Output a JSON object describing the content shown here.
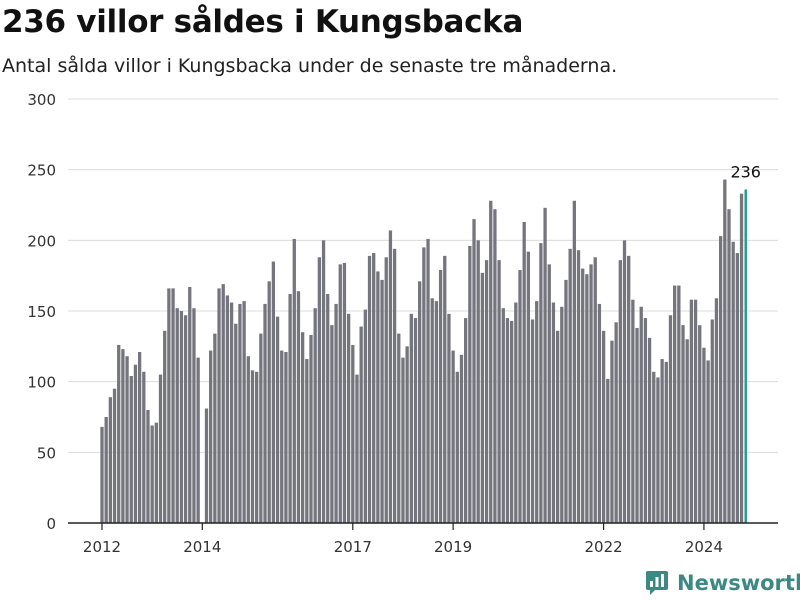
{
  "colors": {
    "bar": "#75757d",
    "highlight": "#1a9c8c",
    "grid": "#dcdcdc",
    "axis": "#222222",
    "brand": "#3a8a83"
  },
  "brand": {
    "name": "Newsworthy",
    "icon": "newsworthy-logo-icon"
  },
  "chart_data": {
    "type": "bar",
    "title": "236 villor såldes i Kungsbacka",
    "subtitle": "Antal sålda villor i Kungsbacka under de senaste tre månaderna.",
    "xlabel": "",
    "ylabel": "",
    "ylim": [
      0,
      300
    ],
    "yticks": [
      "0",
      "50",
      "100",
      "150",
      "200",
      "250",
      "300"
    ],
    "grid": true,
    "legend": "none",
    "first_period": "2012-01",
    "x_tick_labels": [
      {
        "label": "2012",
        "period": "2012-01"
      },
      {
        "label": "2014",
        "period": "2014-01"
      },
      {
        "label": "2017",
        "period": "2017-01"
      },
      {
        "label": "2019",
        "period": "2019-01"
      },
      {
        "label": "2022",
        "period": "2022-01"
      },
      {
        "label": "2024",
        "period": "2024-01"
      }
    ],
    "values": [
      68,
      75,
      89,
      95,
      126,
      123,
      118,
      104,
      112,
      121,
      107,
      80,
      69,
      71,
      105,
      136,
      166,
      166,
      152,
      150,
      147,
      167,
      152,
      117,
      0,
      81,
      122,
      134,
      166,
      169,
      161,
      156,
      141,
      155,
      157,
      118,
      108,
      107,
      134,
      155,
      171,
      185,
      146,
      122,
      121,
      162,
      201,
      164,
      135,
      116,
      133,
      152,
      188,
      200,
      162,
      140,
      155,
      183,
      184,
      148,
      126,
      105,
      139,
      151,
      189,
      191,
      178,
      172,
      188,
      207,
      194,
      134,
      117,
      125,
      148,
      145,
      171,
      195,
      201,
      159,
      157,
      179,
      189,
      148,
      122,
      107,
      119,
      145,
      196,
      215,
      200,
      177,
      186,
      228,
      222,
      186,
      152,
      145,
      143,
      156,
      179,
      213,
      192,
      144,
      157,
      198,
      223,
      183,
      156,
      136,
      153,
      172,
      194,
      228,
      193,
      180,
      176,
      183,
      188,
      155,
      136,
      102,
      129,
      142,
      186,
      200,
      189,
      158,
      138,
      153,
      145,
      131,
      107,
      103,
      116,
      114,
      147,
      168,
      168,
      140,
      130,
      158,
      158,
      140,
      124,
      115,
      144,
      159,
      203,
      243,
      222,
      199,
      191,
      233,
      236
    ],
    "highlight_index": 154,
    "highlight_label": "236"
  }
}
